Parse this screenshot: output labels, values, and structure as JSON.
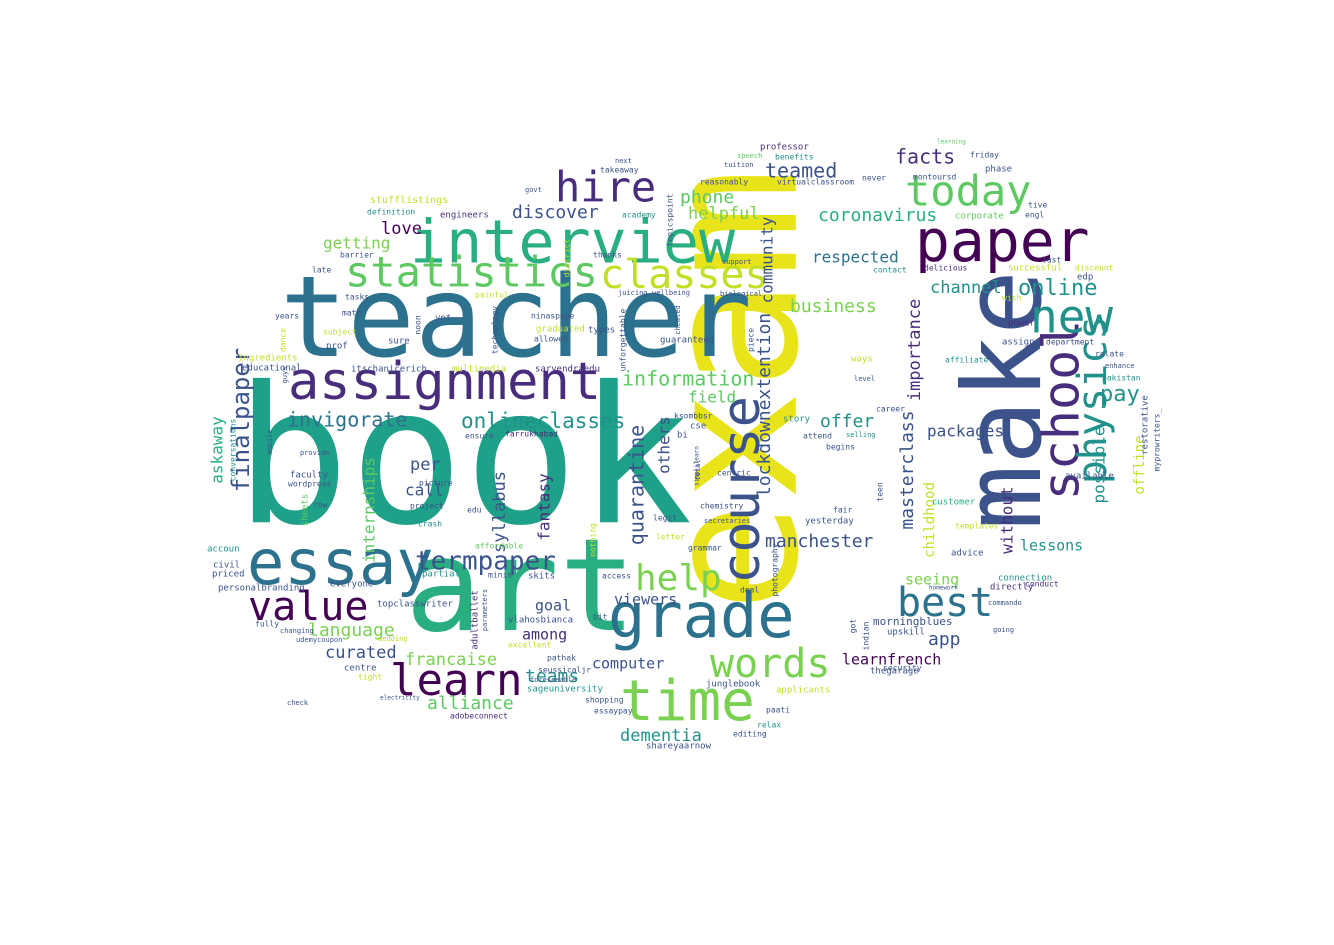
{
  "wordcloud": {
    "palette": {
      "purple-dark": "#440154",
      "indigo": "#472d7b",
      "blue-violet": "#3b528b",
      "steel-blue": "#2c728e",
      "teal": "#21918c",
      "sea-green": "#28ae80",
      "green": "#5ec962",
      "lime": "#addc30",
      "yellow": "#e8e419"
    },
    "words": [
      {
        "text": "book",
        "color": "#1fa088"
      },
      {
        "text": "exam",
        "color": "#e8e419"
      },
      {
        "text": "teacher",
        "color": "#2c728e"
      },
      {
        "text": "art",
        "color": "#28ae80"
      },
      {
        "text": "make",
        "color": "#3b528b"
      },
      {
        "text": "interview",
        "color": "#28ae80"
      },
      {
        "text": "assignment",
        "color": "#472d7b"
      },
      {
        "text": "essay",
        "color": "#2c728e"
      },
      {
        "text": "paper",
        "color": "#440154"
      },
      {
        "text": "grade",
        "color": "#2c728e"
      },
      {
        "text": "course",
        "color": "#3b528b"
      },
      {
        "text": "school",
        "color": "#472d7b"
      },
      {
        "text": "time",
        "color": "#7ad151"
      },
      {
        "text": "statistics",
        "color": "#5ec962"
      },
      {
        "text": "classes",
        "color": "#c2df23"
      },
      {
        "text": "hire",
        "color": "#472d7b"
      },
      {
        "text": "today",
        "color": "#5ec962"
      },
      {
        "text": "new",
        "color": "#21918c"
      },
      {
        "text": "physics",
        "color": "#21918c"
      },
      {
        "text": "best",
        "color": "#2c728e"
      },
      {
        "text": "value",
        "color": "#440154"
      },
      {
        "text": "learn",
        "color": "#440154"
      },
      {
        "text": "words",
        "color": "#7ad151"
      },
      {
        "text": "help",
        "color": "#7ad151"
      },
      {
        "text": "termpaper",
        "color": "#3b528b"
      },
      {
        "text": "finalpaper",
        "color": "#3b528b"
      },
      {
        "text": "invigorate",
        "color": "#2c728e"
      },
      {
        "text": "onlineclasses",
        "color": "#21918c"
      },
      {
        "text": "information",
        "color": "#5ec962"
      },
      {
        "text": "quarantine",
        "color": "#3b528b"
      },
      {
        "text": "lockdownextention",
        "color": "#3b528b"
      },
      {
        "text": "manchester",
        "color": "#3b528b"
      },
      {
        "text": "masterclass",
        "color": "#3b528b"
      },
      {
        "text": "importance",
        "color": "#472d7b"
      },
      {
        "text": "online",
        "color": "#21918c"
      },
      {
        "text": "facts",
        "color": "#472d7b"
      },
      {
        "text": "pay",
        "color": "#21918c"
      },
      {
        "text": "possible",
        "color": "#21918c"
      },
      {
        "text": "coronavirus",
        "color": "#28ae80"
      },
      {
        "text": "teamed",
        "color": "#3b528b"
      },
      {
        "text": "phone",
        "color": "#5ec962"
      },
      {
        "text": "helpful",
        "color": "#7ad151"
      },
      {
        "text": "discover",
        "color": "#3b528b"
      },
      {
        "text": "love",
        "color": "#440154"
      },
      {
        "text": "getting",
        "color": "#7ad151"
      },
      {
        "text": "community",
        "color": "#3b528b"
      },
      {
        "text": "respected",
        "color": "#2c728e"
      },
      {
        "text": "business",
        "color": "#7ad151"
      },
      {
        "text": "channel",
        "color": "#21918c"
      },
      {
        "text": "offer",
        "color": "#21918c"
      },
      {
        "text": "packages",
        "color": "#3b528b"
      },
      {
        "text": "childhood",
        "color": "#c2df23"
      },
      {
        "text": "without",
        "color": "#472d7b"
      },
      {
        "text": "lessons",
        "color": "#21918c"
      },
      {
        "text": "offline",
        "color": "#c2df23"
      },
      {
        "text": "askaway",
        "color": "#28ae80"
      },
      {
        "text": "internships",
        "color": "#5ec962"
      },
      {
        "text": "per",
        "color": "#3b528b"
      },
      {
        "text": "call",
        "color": "#3b528b"
      },
      {
        "text": "syllabus",
        "color": "#3b528b"
      },
      {
        "text": "fantasy",
        "color": "#472d7b"
      },
      {
        "text": "others",
        "color": "#3b528b"
      },
      {
        "text": "field",
        "color": "#5ec962"
      },
      {
        "text": "seeing",
        "color": "#7ad151"
      },
      {
        "text": "app",
        "color": "#3b528b"
      },
      {
        "text": "language",
        "color": "#7ad151"
      },
      {
        "text": "curated",
        "color": "#3b528b"
      },
      {
        "text": "francaise",
        "color": "#7ad151"
      },
      {
        "text": "alliance",
        "color": "#5ec962"
      },
      {
        "text": "teams",
        "color": "#21918c"
      },
      {
        "text": "goal",
        "color": "#3b528b"
      },
      {
        "text": "among",
        "color": "#472d7b"
      },
      {
        "text": "viewers",
        "color": "#3b528b"
      },
      {
        "text": "computer",
        "color": "#3b528b"
      },
      {
        "text": "dementia",
        "color": "#21918c"
      },
      {
        "text": "learnfrench",
        "color": "#440154"
      },
      {
        "text": "morningblues",
        "color": "#3b528b"
      },
      {
        "text": "educational",
        "color": "#3b528b"
      },
      {
        "text": "sarvendraedu",
        "color": "#472d7b"
      },
      {
        "text": "multimedia",
        "color": "#c2df23"
      },
      {
        "text": "adultballet",
        "color": "#472d7b"
      },
      {
        "text": "vlahosbianca",
        "color": "#3b528b"
      },
      {
        "text": "topclasswriter",
        "color": "#3b528b"
      },
      {
        "text": "personalbranding",
        "color": "#3b528b"
      },
      {
        "text": "stufflistings",
        "color": "#c2df23"
      },
      {
        "text": "engineers",
        "color": "#472d7b"
      },
      {
        "text": "professor",
        "color": "#472d7b"
      },
      {
        "text": "benefits",
        "color": "#21918c"
      },
      {
        "text": "reasonably",
        "color": "#3b528b"
      },
      {
        "text": "virtualclassroom",
        "color": "#3b528b"
      },
      {
        "text": "montoursd",
        "color": "#3b528b"
      },
      {
        "text": "takeaway",
        "color": "#3b528b"
      },
      {
        "text": "academy",
        "color": "#21918c"
      },
      {
        "text": "delicious",
        "color": "#472d7b"
      },
      {
        "text": "corporate",
        "color": "#5ec962"
      },
      {
        "text": "successful",
        "color": "#c2df23"
      },
      {
        "text": "affiliate",
        "color": "#21918c"
      },
      {
        "text": "department",
        "color": "#3b528b"
      },
      {
        "text": "pakistan",
        "color": "#21918c"
      },
      {
        "text": "guaranteed",
        "color": "#3b528b"
      },
      {
        "text": "graduated",
        "color": "#c2df23"
      },
      {
        "text": "allowed",
        "color": "#3b528b"
      },
      {
        "text": "ingredients",
        "color": "#c2df23"
      },
      {
        "text": "conversations",
        "color": "#21918c"
      },
      {
        "text": "faculty",
        "color": "#3b528b"
      },
      {
        "text": "wordpress",
        "color": "#3b528b"
      },
      {
        "text": "chemistry",
        "color": "#3b528b"
      },
      {
        "text": "yesterday",
        "color": "#3b528b"
      },
      {
        "text": "templates",
        "color": "#c2df23"
      },
      {
        "text": "customer",
        "color": "#28ae80"
      },
      {
        "text": "advice",
        "color": "#3b528b"
      },
      {
        "text": "connection",
        "color": "#21918c"
      },
      {
        "text": "directly",
        "color": "#472d7b"
      },
      {
        "text": "conduct",
        "color": "#472d7b"
      },
      {
        "text": "upskill",
        "color": "#3b528b"
      },
      {
        "text": "thegarage",
        "color": "#3b528b"
      },
      {
        "text": "applicants",
        "color": "#c2df23"
      },
      {
        "text": "sageuniversity",
        "color": "#21918c"
      },
      {
        "text": "junglebook",
        "color": "#3b528b"
      },
      {
        "text": "shareyaarnow",
        "color": "#3b528b"
      },
      {
        "text": "editing",
        "color": "#3b528b"
      },
      {
        "text": "relax",
        "color": "#21918c"
      },
      {
        "text": "paati",
        "color": "#3b528b"
      },
      {
        "text": "essaypay",
        "color": "#3b528b"
      },
      {
        "text": "shopping",
        "color": "#3b528b"
      },
      {
        "text": "adobeconnect",
        "color": "#472d7b"
      },
      {
        "text": "seussicaljr",
        "color": "#3b528b"
      },
      {
        "text": "foreseeable",
        "color": "#3b528b"
      },
      {
        "text": "pathak",
        "color": "#3b528b"
      },
      {
        "text": "centre",
        "color": "#3b528b"
      },
      {
        "text": "tight",
        "color": "#c2df23"
      },
      {
        "text": "priced",
        "color": "#3b528b"
      },
      {
        "text": "civil",
        "color": "#3b528b"
      },
      {
        "text": "accoun",
        "color": "#21918c"
      },
      {
        "text": "everyone",
        "color": "#3b528b"
      },
      {
        "text": "partial",
        "color": "#21918c"
      },
      {
        "text": "skits",
        "color": "#3b528b"
      },
      {
        "text": "minis",
        "color": "#3b528b"
      },
      {
        "text": "affordable",
        "color": "#5ec962"
      },
      {
        "text": "crash",
        "color": "#21918c"
      },
      {
        "text": "project",
        "color": "#3b528b"
      },
      {
        "text": "picture",
        "color": "#3b528b"
      },
      {
        "text": "ensure",
        "color": "#3b528b"
      },
      {
        "text": "farrukhabad",
        "color": "#472d7b"
      },
      {
        "text": "itschanicerich",
        "color": "#3b528b"
      },
      {
        "text": "prof",
        "color": "#3b528b"
      },
      {
        "text": "subject",
        "color": "#c2df23"
      },
      {
        "text": "years",
        "color": "#3b528b"
      },
      {
        "text": "math",
        "color": "#3b528b"
      },
      {
        "text": "tasks",
        "color": "#3b528b"
      },
      {
        "text": "late",
        "color": "#3b528b"
      },
      {
        "text": "barrier",
        "color": "#3b528b"
      },
      {
        "text": "definition",
        "color": "#21918c"
      },
      {
        "text": "yet",
        "color": "#3b528b"
      },
      {
        "text": "noon",
        "color": "#3b528b"
      },
      {
        "text": "sure",
        "color": "#3b528b"
      },
      {
        "text": "ninaspage",
        "color": "#3b528b"
      },
      {
        "text": "types",
        "color": "#3b528b"
      },
      {
        "text": "unforgettable",
        "color": "#3b528b"
      },
      {
        "text": "piece",
        "color": "#3b528b"
      },
      {
        "text": "story",
        "color": "#21918c"
      },
      {
        "text": "attend",
        "color": "#3b528b"
      },
      {
        "text": "begins",
        "color": "#3b528b"
      },
      {
        "text": "fair",
        "color": "#3b528b"
      },
      {
        "text": "career",
        "color": "#3b528b"
      },
      {
        "text": "selling",
        "color": "#21918c"
      },
      {
        "text": "level",
        "color": "#3b528b"
      },
      {
        "text": "ways",
        "color": "#c2df23"
      },
      {
        "text": "security",
        "color": "#3b528b"
      },
      {
        "text": "indian",
        "color": "#3b528b"
      },
      {
        "text": "got",
        "color": "#3b528b"
      },
      {
        "text": "teen",
        "color": "#3b528b"
      },
      {
        "text": "power",
        "color": "#472d7b"
      },
      {
        "text": "assign",
        "color": "#3b528b"
      },
      {
        "text": "relate",
        "color": "#3b528b"
      },
      {
        "text": "enhance",
        "color": "#3b528b"
      },
      {
        "text": "available",
        "color": "#3b528b"
      },
      {
        "text": "restorative",
        "color": "#3b528b"
      },
      {
        "text": "myprowriters_",
        "color": "#3b528b"
      },
      {
        "text": "edp",
        "color": "#3b528b"
      },
      {
        "text": "last",
        "color": "#3b528b"
      },
      {
        "text": "discount",
        "color": "#c2df23"
      },
      {
        "text": "engl",
        "color": "#3b528b"
      },
      {
        "text": "tive",
        "color": "#3b528b"
      },
      {
        "text": "friday",
        "color": "#3b528b"
      },
      {
        "text": "phase",
        "color": "#3b528b"
      },
      {
        "text": "never",
        "color": "#3b528b"
      },
      {
        "text": "contact",
        "color": "#21918c"
      },
      {
        "text": "centric",
        "color": "#3b528b"
      },
      {
        "text": "bi",
        "color": "#3b528b"
      },
      {
        "text": "cse",
        "color": "#3b528b"
      },
      {
        "text": "ksombbsr",
        "color": "#3b528b"
      },
      {
        "text": "technology",
        "color": "#3b528b"
      },
      {
        "text": "topicspoint",
        "color": "#3b528b"
      },
      {
        "text": "district",
        "color": "#c2df23"
      },
      {
        "text": "thanks",
        "color": "#3b528b"
      },
      {
        "text": "support",
        "color": "#3b528b"
      },
      {
        "text": "speech",
        "color": "#5ec962"
      },
      {
        "text": "tuition",
        "color": "#3b528b"
      },
      {
        "text": "next",
        "color": "#3b528b"
      },
      {
        "text": "govt",
        "color": "#3b528b"
      },
      {
        "text": "painful",
        "color": "#c2df23"
      },
      {
        "text": "juicing",
        "color": "#3b528b"
      },
      {
        "text": "wellbeing",
        "color": "#3b528b"
      },
      {
        "text": "biological",
        "color": "#3b528b"
      },
      {
        "text": "photography",
        "color": "#3b528b"
      },
      {
        "text": "legit",
        "color": "#3b528b"
      },
      {
        "text": "letter",
        "color": "#c2df23"
      },
      {
        "text": "grammar",
        "color": "#3b528b"
      },
      {
        "text": "deal",
        "color": "#3b528b"
      },
      {
        "text": "total",
        "color": "#3b528b"
      },
      {
        "text": "access",
        "color": "#3b528b"
      },
      {
        "text": "nothing",
        "color": "#c2df23"
      },
      {
        "text": "bit",
        "color": "#3b528b"
      },
      {
        "text": "excellent",
        "color": "#c2df23"
      },
      {
        "text": "fully",
        "color": "#3b528b"
      },
      {
        "text": "dance",
        "color": "#c2df23"
      },
      {
        "text": "sheets",
        "color": "#5ec962"
      },
      {
        "text": "row",
        "color": "#3b528b"
      },
      {
        "text": "edu",
        "color": "#3b528b"
      },
      {
        "text": "wedding",
        "color": "#c2df23"
      },
      {
        "text": "guys",
        "color": "#3b528b"
      },
      {
        "text": "mobile",
        "color": "#3b528b"
      },
      {
        "text": "parameters",
        "color": "#3b528b"
      },
      {
        "text": "commando",
        "color": "#3b528b"
      },
      {
        "text": "homework",
        "color": "#3b528b"
      },
      {
        "text": "learning",
        "color": "#5ec962"
      },
      {
        "text": "wish",
        "color": "#c2df23"
      },
      {
        "text": "going",
        "color": "#3b528b"
      },
      {
        "text": "udemycoupon",
        "color": "#3b528b"
      },
      {
        "text": "electricity",
        "color": "#3b528b"
      },
      {
        "text": "check",
        "color": "#3b528b"
      },
      {
        "text": "changing",
        "color": "#3b528b"
      },
      {
        "text": "provide",
        "color": "#3b528b"
      },
      {
        "text": "cheated",
        "color": "#3b528b"
      },
      {
        "text": "secretaries",
        "color": "#3b528b"
      },
      {
        "text": "simplilearn",
        "color": "#3b528b"
      }
    ]
  }
}
